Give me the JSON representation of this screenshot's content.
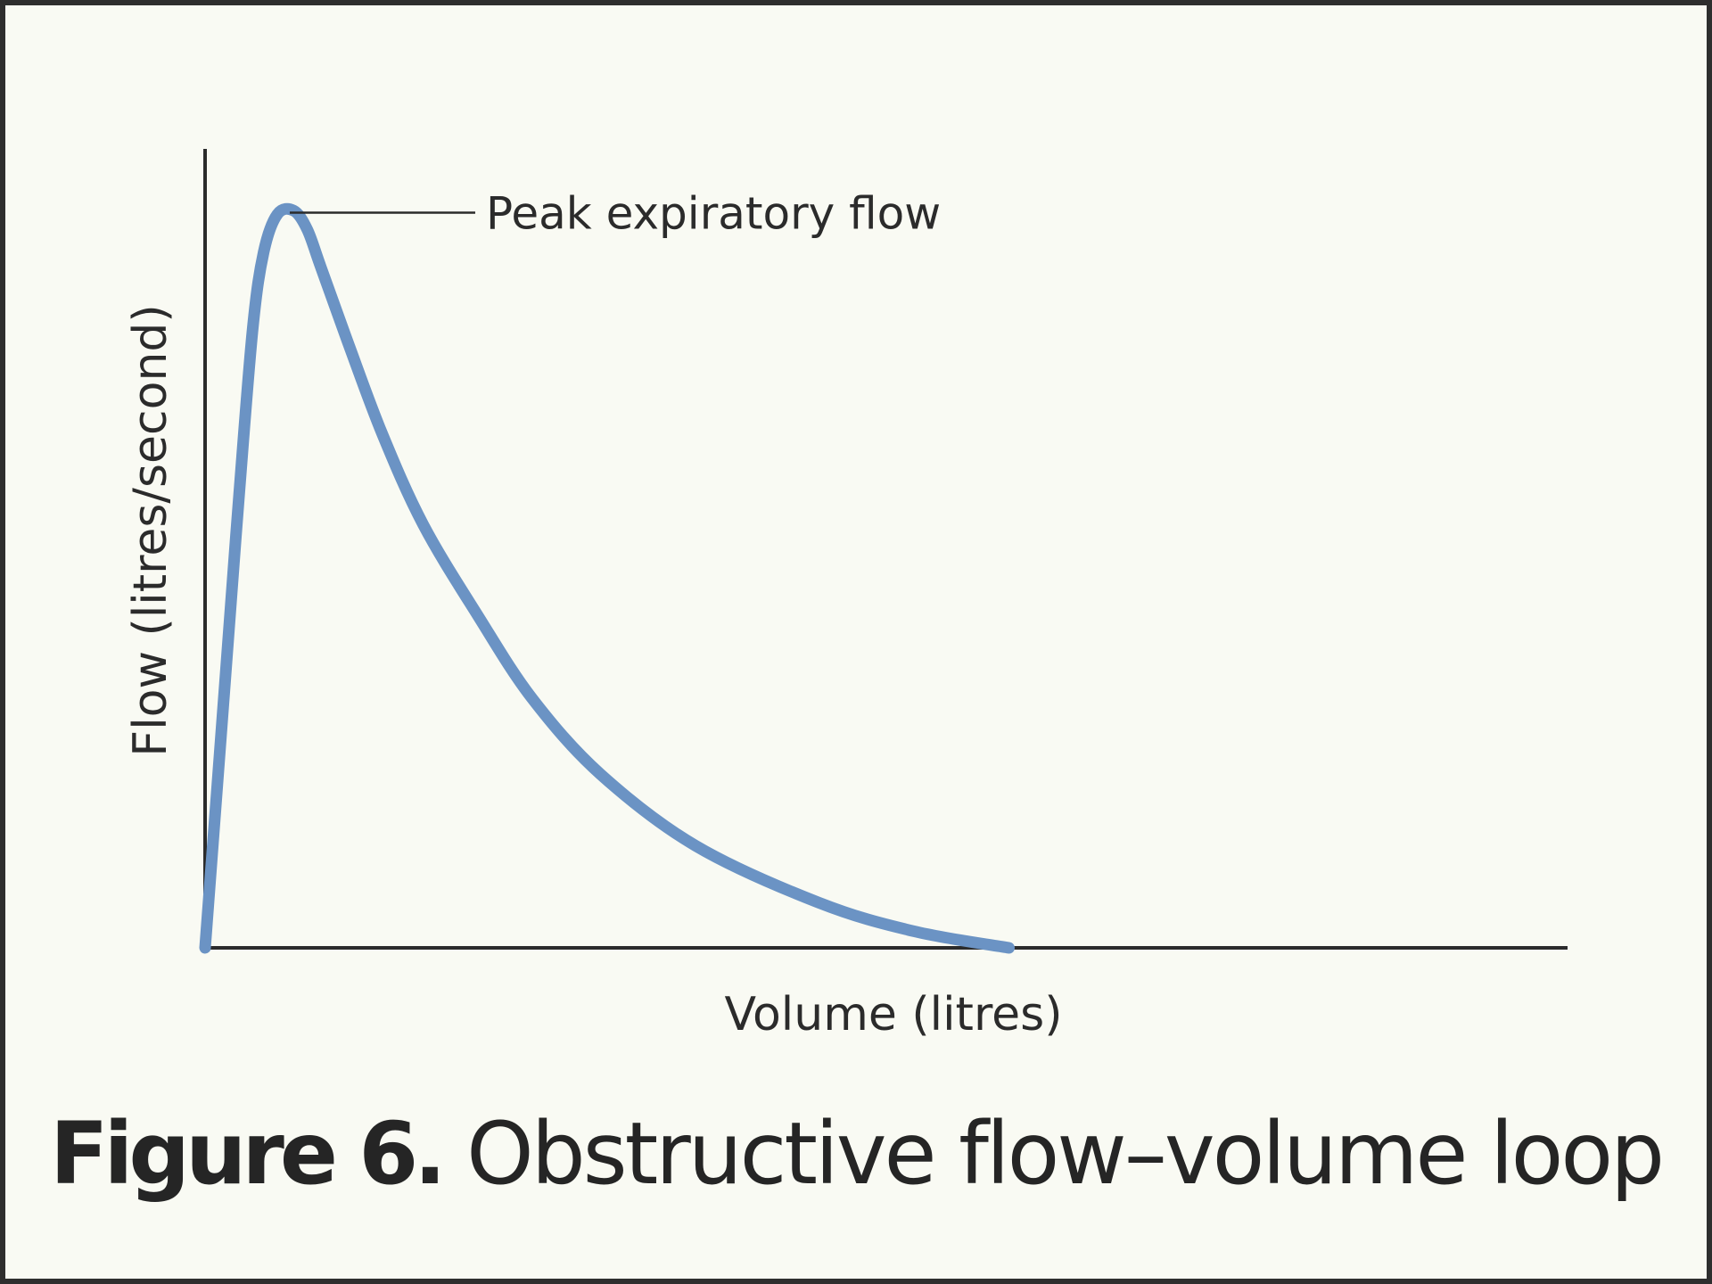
{
  "colors": {
    "background": "#f9faf3",
    "border": "#2e2e2e",
    "curve": "#6b93c4",
    "axis": "#2b2b2b"
  },
  "caption": {
    "label": "Figure 6.",
    "title": "Obstructive flow–volume loop"
  },
  "chart_data": {
    "type": "line",
    "title": "Obstructive flow–volume loop",
    "xlabel": "Volume (litres)",
    "ylabel": "Flow (litres/second)",
    "ticks": "none",
    "grid": false,
    "xlim": [
      0,
      100
    ],
    "ylim": [
      0,
      100
    ],
    "note_units": "relative (axes unlabelled, no tick values)",
    "series": [
      {
        "x": [
          0,
          1.5,
          2.5,
          3.5,
          4.3,
          5.3,
          6.5,
          7.5,
          8.5,
          10.5,
          13,
          16,
          20,
          24,
          29,
          36,
          45,
          52,
          59
        ],
        "y": [
          0,
          36,
          60,
          82,
          92,
          97,
          97.5,
          95,
          90,
          80,
          68,
          56,
          44,
          33,
          23,
          13.5,
          6,
          2.2,
          0
        ]
      }
    ],
    "annotations": [
      {
        "text": "Peak expiratory flow",
        "x": 5.3,
        "y": 97
      }
    ]
  }
}
